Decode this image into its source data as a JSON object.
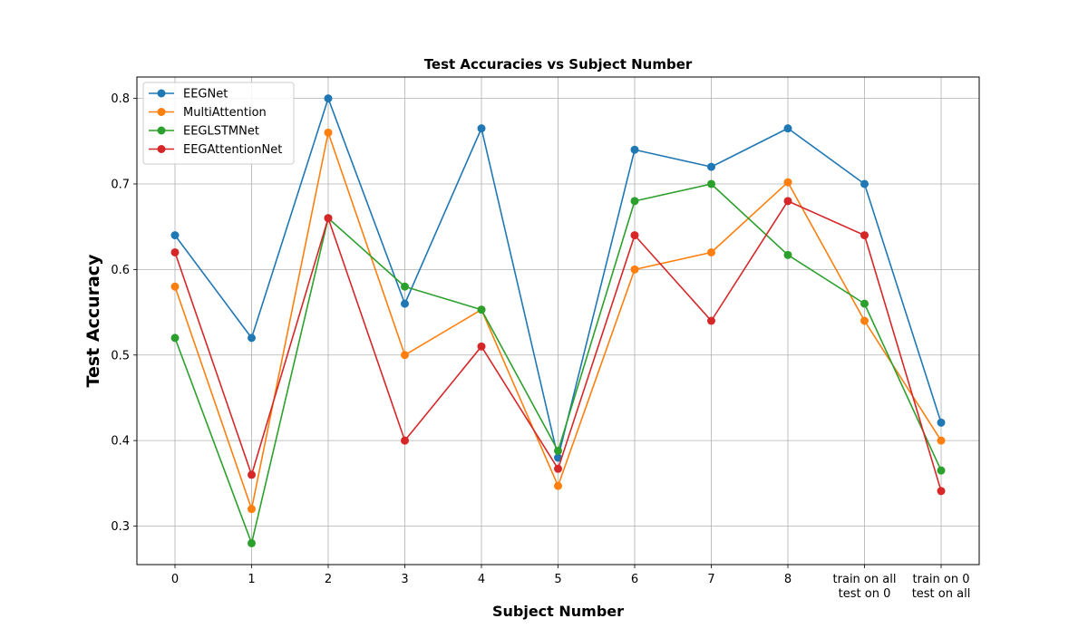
{
  "chart_data": {
    "type": "line",
    "title": "Test Accuracies vs Subject Number",
    "xlabel": "Subject Number",
    "ylabel": "Test Accuracy",
    "categories": [
      [
        "0"
      ],
      [
        "1"
      ],
      [
        "2"
      ],
      [
        "3"
      ],
      [
        "4"
      ],
      [
        "5"
      ],
      [
        "6"
      ],
      [
        "7"
      ],
      [
        "8"
      ],
      [
        "train on all",
        "test on 0"
      ],
      [
        "train on 0",
        "test on all"
      ]
    ],
    "ylim": [
      0.255,
      0.825
    ],
    "yticks": [
      0.3,
      0.4,
      0.5,
      0.6,
      0.7,
      0.8
    ],
    "ytick_labels": [
      "0.3",
      "0.4",
      "0.5",
      "0.6",
      "0.7",
      "0.8"
    ],
    "grid": true,
    "legend_position": "top-left",
    "series": [
      {
        "name": "EEGNet",
        "color": "#1f77b4",
        "values": [
          0.64,
          0.52,
          0.8,
          0.56,
          0.765,
          0.38,
          0.74,
          0.72,
          0.765,
          0.7,
          0.421
        ]
      },
      {
        "name": "MultiAttention",
        "color": "#ff7f0e",
        "values": [
          0.58,
          0.32,
          0.76,
          0.5,
          0.553,
          0.347,
          0.6,
          0.62,
          0.702,
          0.54,
          0.4
        ]
      },
      {
        "name": "EEGLSTMNet",
        "color": "#2ca02c",
        "values": [
          0.52,
          0.28,
          0.66,
          0.58,
          0.553,
          0.388,
          0.68,
          0.7,
          0.617,
          0.56,
          0.365
        ]
      },
      {
        "name": "EEGAttentionNet",
        "color": "#d62728",
        "values": [
          0.62,
          0.36,
          0.66,
          0.4,
          0.51,
          0.367,
          0.64,
          0.54,
          0.68,
          0.64,
          0.341
        ]
      }
    ]
  }
}
